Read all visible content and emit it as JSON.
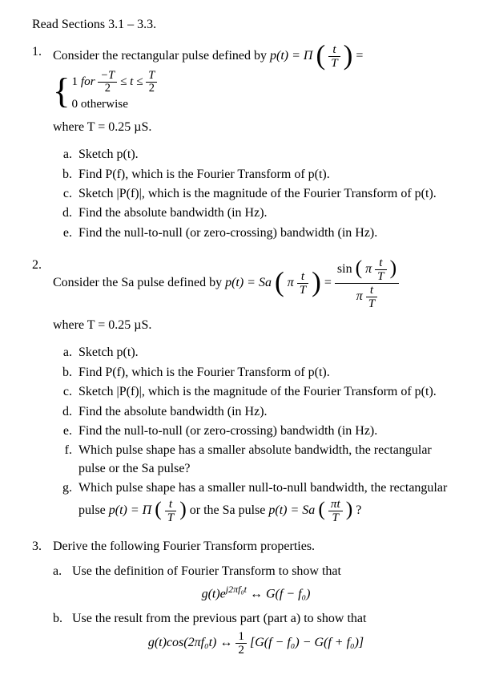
{
  "header": "Read Sections 3.1 – 3.3.",
  "q1": {
    "num": "1.",
    "lead": "Consider the rectangular pulse defined by ",
    "p_of_t": "p(t) = Π",
    "case1_pre": "1 ",
    "case1_for": "for",
    "case2": "0 otherwise",
    "where": "where T = 0.25 µS.",
    "a": "Sketch p(t).",
    "b": "Find P(f), which is the Fourier Transform of p(t).",
    "c": "Sketch |P(f)|, which is the magnitude of the Fourier Transform of p(t).",
    "d": "Find the absolute bandwidth (in Hz).",
    "e": "Find the null-to-null (or zero-crossing) bandwidth (in Hz)."
  },
  "q2": {
    "num": "2.",
    "lead": "Consider the Sa pulse defined by ",
    "p_of_t": "p(t) = Sa",
    "where": "where T = 0.25 µS.",
    "a": "Sketch p(t).",
    "b": "Find P(f), which is the Fourier Transform of p(t).",
    "c": "Sketch |P(f)|, which is the magnitude of the Fourier Transform of p(t).",
    "d": "Find the absolute bandwidth (in Hz).",
    "e": "Find the null-to-null (or zero-crossing) bandwidth (in Hz).",
    "f": "Which pulse shape has a smaller absolute bandwidth, the rectangular pulse or the Sa pulse?",
    "g_pre": "Which pulse shape has a smaller null-to-null bandwidth, the rectangular pulse ",
    "g_mid1": "p(t) = Π",
    "g_mid2": " or the Sa pulse ",
    "g_mid3": "p(t) = Sa",
    "g_tail": "?"
  },
  "q3": {
    "num": "3.",
    "lead": "Derive the following Fourier Transform properties.",
    "a_lab": "a.",
    "a_txt": "Use the definition of Fourier Transform to show that",
    "a_eq_lhs": "g(t)e",
    "a_eq_exp": "j2πf₀t",
    "a_eq_arrow": " ↔ ",
    "a_eq_rhs": "G(f − f₀)",
    "b_lab": "b.",
    "b_txt": "Use the result from the previous part (part a) to show that",
    "b_eq_lhs": "g(t)cos(2πf₀t) ↔ ",
    "b_eq_rhs": "[G(f − f₀) − G(f + f₀)]"
  },
  "sym": {
    "t": "t",
    "T": "T",
    "minusT": "−T",
    "two": "2",
    "le": "≤",
    "t_le": " ≤ t ≤ ",
    "pi": "π",
    "sin": "sin",
    "one": "1",
    "half_n": "1",
    "half_d": "2",
    "pit": "πt"
  }
}
